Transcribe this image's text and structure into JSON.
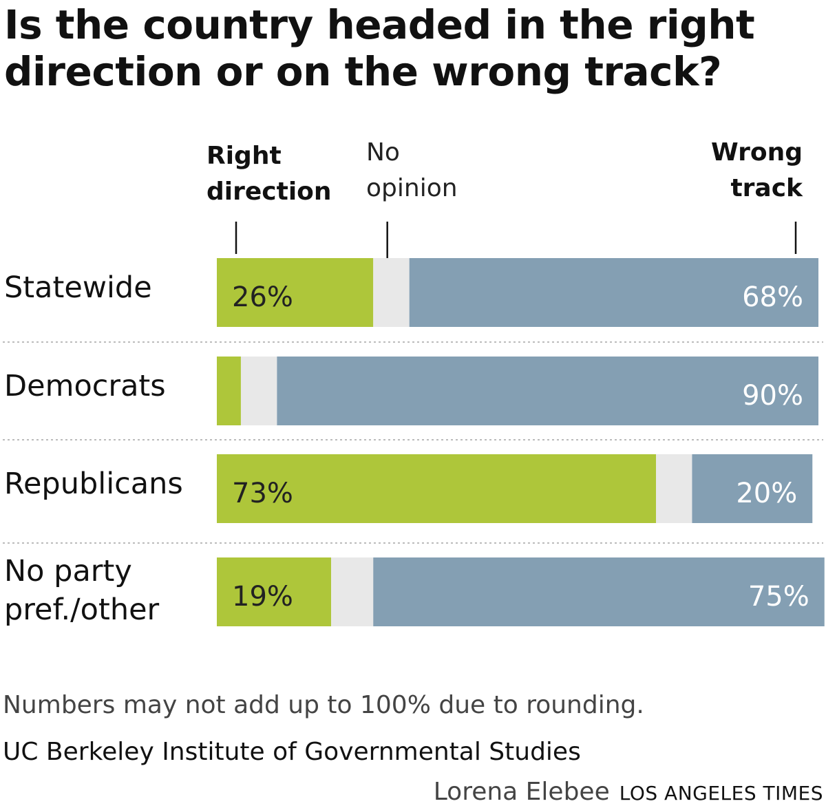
{
  "title": "Is the country headed in the right direction or on the wrong track?",
  "legend": {
    "right_direction": [
      "Right",
      "direction"
    ],
    "no_opinion": [
      "No",
      "opinion"
    ],
    "wrong_track": [
      "Wrong",
      "track"
    ]
  },
  "colors": {
    "right_direction": "#aec63a",
    "no_opinion": "#e8e8e8",
    "wrong_track": "#849fb3"
  },
  "note": "Numbers may not add up to 100% due to rounding.",
  "source": "UC Berkeley Institute of Governmental Studies",
  "credit": {
    "name": "Lorena Elebee",
    "org": "LOS ANGELES TIMES"
  },
  "chart_data": {
    "type": "bar",
    "orientation": "horizontal",
    "stacked": true,
    "categories": [
      [
        "Statewide"
      ],
      [
        "Democrats"
      ],
      [
        "Republicans"
      ],
      [
        "No party",
        "pref./other"
      ]
    ],
    "series": [
      {
        "name": "Right direction",
        "values": [
          26,
          4,
          73,
          19
        ],
        "labels": [
          "26%",
          "",
          "73%",
          "19%"
        ]
      },
      {
        "name": "No opinion",
        "values": [
          6,
          6,
          6,
          7
        ],
        "labels": [
          "",
          "",
          "",
          ""
        ]
      },
      {
        "name": "Wrong track",
        "values": [
          68,
          90,
          20,
          75
        ],
        "labels": [
          "68%",
          "90%",
          "20%",
          "75%"
        ]
      }
    ],
    "xlim": [
      0,
      100
    ],
    "grid": false
  }
}
